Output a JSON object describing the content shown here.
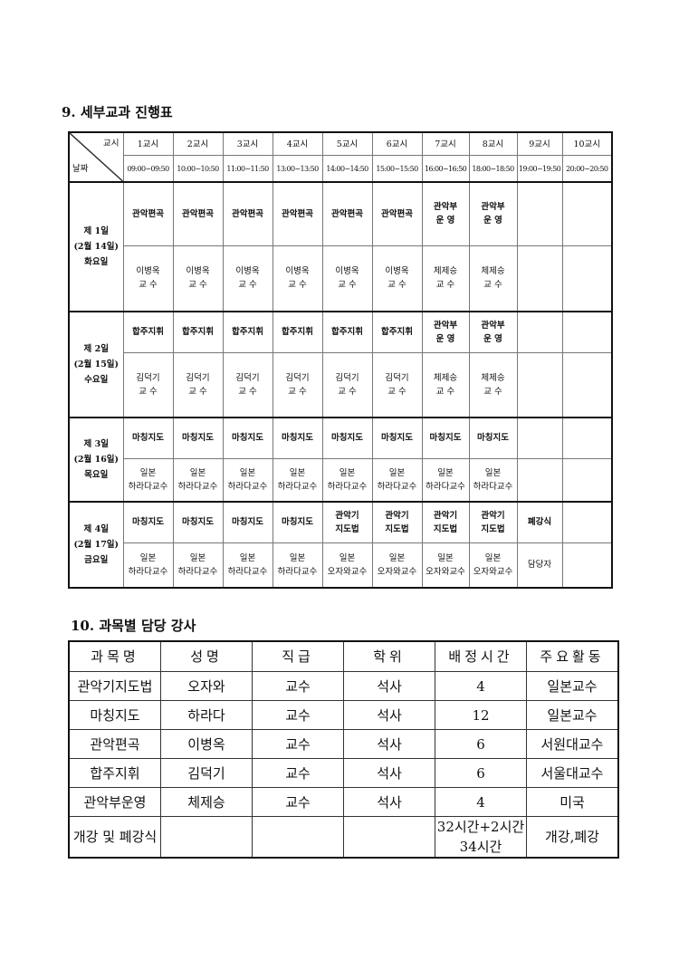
{
  "schedule": {
    "title": "9. 세부교과 진행표",
    "corner_top": "교시",
    "corner_bottom": "날짜",
    "periods": [
      "1교시",
      "2교시",
      "3교시",
      "4교시",
      "5교시",
      "6교시",
      "7교시",
      "8교시",
      "9교시",
      "10교시"
    ],
    "times": [
      "09:00~09:50",
      "10:00~10:50",
      "11:00~11:50",
      "13:00~13:50",
      "14:00~14:50",
      "15:00~15:50",
      "16:00~16:50",
      "18:00~18:50",
      "19:00~19:50",
      "20:00~20:50"
    ],
    "days": [
      {
        "label": "제 1일\n(2월 14일)\n화요일",
        "subjects": [
          "관악편곡",
          "관악편곡",
          "관악편곡",
          "관악편곡",
          "관악편곡",
          "관악편곡",
          "관악부\n운 영",
          "관악부\n운 영",
          "",
          ""
        ],
        "profs": [
          "이병옥\n교 수",
          "이병옥\n교 수",
          "이병옥\n교 수",
          "이병옥\n교 수",
          "이병옥\n교 수",
          "이병옥\n교 수",
          "체제승\n교 수",
          "체제승\n교 수",
          "",
          ""
        ]
      },
      {
        "label": "제 2일\n(2월 15일)\n수요일",
        "subjects": [
          "합주지휘",
          "합주지휘",
          "합주지휘",
          "합주지휘",
          "합주지휘",
          "합주지휘",
          "관악부\n운 영",
          "관악부\n운 영",
          "",
          ""
        ],
        "profs": [
          "김덕기\n교 수",
          "김덕기\n교 수",
          "김덕기\n교 수",
          "김덕기\n교 수",
          "김덕기\n교 수",
          "김덕기\n교 수",
          "체제승\n교 수",
          "체제승\n교 수",
          "",
          ""
        ]
      },
      {
        "label": "제 3일\n(2월 16일)\n목요일",
        "subjects": [
          "마칭지도",
          "마칭지도",
          "마칭지도",
          "마칭지도",
          "마칭지도",
          "마칭지도",
          "마칭지도",
          "마칭지도",
          "",
          ""
        ],
        "profs": [
          "일본\n하라다교수",
          "일본\n하라다교수",
          "일본\n하라다교수",
          "일본\n하라다교수",
          "일본\n하라다교수",
          "일본\n하라다교수",
          "일본\n하라다교수",
          "일본\n하라다교수",
          "",
          ""
        ]
      },
      {
        "label": "제 4일\n(2월 17일)\n금요일",
        "subjects": [
          "마칭지도",
          "마칭지도",
          "마칭지도",
          "마칭지도",
          "관악기\n지도법",
          "관악기\n지도법",
          "관악기\n지도법",
          "관악기\n지도법",
          "폐강식",
          ""
        ],
        "profs": [
          "일본\n하라다교수",
          "일본\n하라다교수",
          "일본\n하라다교수",
          "일본\n하라다교수",
          "일본\n오자와교수",
          "일본\n오자와교수",
          "일본\n오자와교수",
          "일본\n오자와교수",
          "담당자",
          ""
        ]
      }
    ]
  },
  "instructors": {
    "title": "10. 과목별 담당 강사",
    "headers": [
      "과목명",
      "성명",
      "직급",
      "학위",
      "배정시간",
      "주요활동"
    ],
    "rows": [
      [
        "관악기지도법",
        "오자와",
        "교수",
        "석사",
        "4",
        "일본교수"
      ],
      [
        "마칭지도",
        "하라다",
        "교수",
        "석사",
        "12",
        "일본교수"
      ],
      [
        "관악편곡",
        "이병옥",
        "교수",
        "석사",
        "6",
        "서원대교수"
      ],
      [
        "합주지휘",
        "김덕기",
        "교수",
        "석사",
        "6",
        "서울대교수"
      ],
      [
        "관악부운영",
        "체제승",
        "교수",
        "석사",
        "4",
        "미국"
      ],
      [
        "개강 및 폐강식",
        "",
        "",
        "",
        "32시간+2시간\n34시간",
        "개강,폐강"
      ]
    ]
  }
}
